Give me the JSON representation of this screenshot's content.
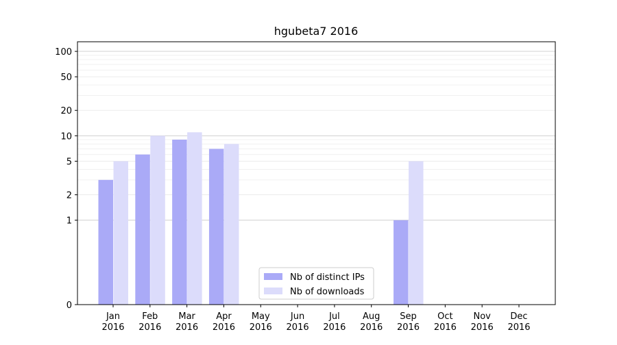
{
  "chart_data": {
    "type": "bar",
    "title": "hgubeta7 2016",
    "xlabel": "",
    "ylabel": "",
    "y_scale": "symlog",
    "ylim": [
      0,
      130
    ],
    "y_ticks": [
      0,
      1,
      2,
      5,
      10,
      20,
      50,
      100
    ],
    "y_tick_labels": [
      "0",
      "1",
      "2",
      "5",
      "10",
      "20",
      "50",
      "100"
    ],
    "categories": [
      "Jan",
      "Feb",
      "Mar",
      "Apr",
      "May",
      "Jun",
      "Jul",
      "Aug",
      "Sep",
      "Oct",
      "Nov",
      "Dec"
    ],
    "category_year": "2016",
    "grid": true,
    "legend_position": "lower-center",
    "series": [
      {
        "name": "Nb of distinct IPs",
        "color": "#aaaaf7",
        "values": [
          3,
          6,
          9,
          7,
          0,
          0,
          0,
          0,
          1,
          0,
          0,
          0
        ]
      },
      {
        "name": "Nb of downloads",
        "color": "#dcdcfb",
        "values": [
          5,
          10,
          11,
          8,
          0,
          0,
          0,
          0,
          5,
          0,
          0,
          0
        ]
      }
    ]
  }
}
